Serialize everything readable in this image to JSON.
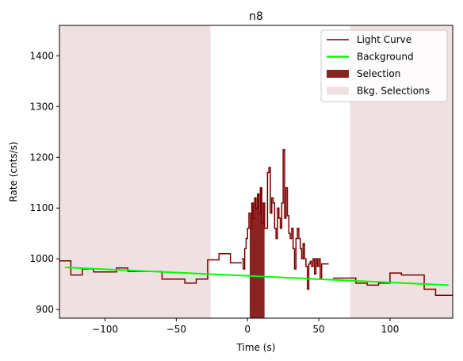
{
  "chart_data": {
    "type": "line",
    "title": "n8",
    "xlabel": "Time (s)",
    "ylabel": "Rate (cnts/s)",
    "xlim": [
      -132,
      144
    ],
    "ylim": [
      883,
      1460
    ],
    "xticks": [
      -100,
      -50,
      0,
      50,
      100
    ],
    "yticks": [
      900,
      1000,
      1100,
      1200,
      1300,
      1400
    ],
    "grid": false,
    "legend_position": "top-right",
    "colors": {
      "light_curve": "#7b0000",
      "background": "#00ff00",
      "selection": "#8b2323",
      "bkg_selection": "#efe1e1"
    },
    "legend": [
      {
        "label": "Light Curve",
        "kind": "line",
        "color": "#7b0000"
      },
      {
        "label": "Background",
        "kind": "line",
        "color": "#00ff00"
      },
      {
        "label": "Selection",
        "kind": "patch",
        "color": "#8b2323"
      },
      {
        "label": "Bkg. Selections",
        "kind": "patch",
        "color": "#efe1e1"
      }
    ],
    "bkg_selections": [
      [
        -132,
        -26
      ],
      [
        72,
        144
      ]
    ],
    "selection": [
      1.5,
      12
    ],
    "background_line": {
      "x": [
        -128,
        141
      ],
      "y": [
        983,
        948
      ]
    },
    "light_curve_wide": {
      "edges": [
        -132,
        -124,
        -116,
        -108,
        -100,
        -92,
        -84,
        -76,
        -68,
        -60,
        -52,
        -44,
        -36,
        -28,
        -20,
        -12,
        -4,
        4,
        12,
        20,
        28,
        36,
        44,
        52,
        60,
        68,
        76,
        84,
        92,
        100,
        108,
        116,
        124,
        132,
        140,
        148
      ],
      "values": [
        996,
        968,
        980,
        974,
        974,
        982,
        975,
        975,
        975,
        960,
        960,
        952,
        960,
        998,
        1010,
        992,
        968,
        968,
        962,
        962,
        962,
        962,
        962,
        962,
        962,
        962,
        952,
        948,
        952,
        972,
        968,
        968,
        940,
        928,
        928
      ]
    },
    "light_curve_fine": {
      "edges": [
        -4,
        -3,
        -2,
        -1,
        0,
        1,
        2,
        3,
        4,
        5,
        6,
        7,
        8,
        9,
        10,
        11,
        12,
        13,
        14,
        15,
        16,
        17,
        18,
        19,
        20,
        21,
        22,
        23,
        24,
        25,
        26,
        27,
        28,
        29,
        30,
        31,
        32,
        33,
        34,
        35,
        36,
        37,
        38,
        39,
        40,
        41,
        42,
        43,
        44,
        45,
        46,
        47,
        48,
        49,
        50,
        51,
        52,
        53,
        54,
        55,
        56,
        57
      ],
      "values": [
        1000,
        980,
        1020,
        1040,
        1060,
        1090,
        1060,
        1110,
        1080,
        1120,
        1100,
        1128,
        1090,
        1140,
        1070,
        1110,
        1060,
        1060,
        1170,
        1180,
        1090,
        1120,
        1110,
        1060,
        1040,
        1100,
        1080,
        1060,
        1110,
        1215,
        1080,
        1140,
        1085,
        1050,
        1040,
        1060,
        1020,
        980,
        1040,
        1060,
        1040,
        1020,
        1000,
        1030,
        1000,
        985,
        940,
        990,
        995,
        985,
        1000,
        970,
        1000,
        985,
        1000,
        960,
        990,
        990,
        990,
        990,
        990
      ]
    }
  }
}
